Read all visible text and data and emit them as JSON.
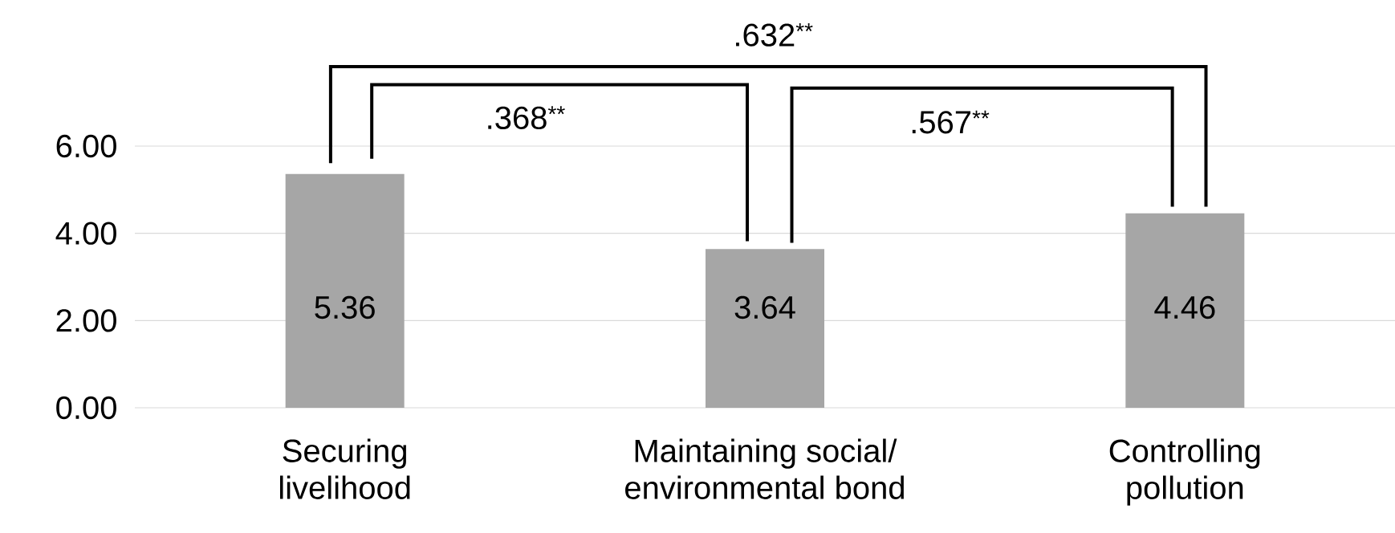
{
  "chart_data": {
    "type": "bar",
    "categories": [
      "Securing livelihood",
      "Maintaining social/ environmental bond",
      "Controlling pollution"
    ],
    "values": [
      5.36,
      3.64,
      4.46
    ],
    "color": "#a6a6a6",
    "data_labels": true,
    "grid": "y",
    "ylim": [
      0,
      6
    ],
    "yticks": [
      {
        "value": 0,
        "label": "0.00"
      },
      {
        "value": 2,
        "label": "2.00"
      },
      {
        "value": 4,
        "label": "4.00"
      },
      {
        "value": 6,
        "label": "6.00"
      }
    ],
    "annotations": [
      ".632$^{**}$",
      ".368$^{**}$",
      ".567$^{**}$"
    ]
  }
}
